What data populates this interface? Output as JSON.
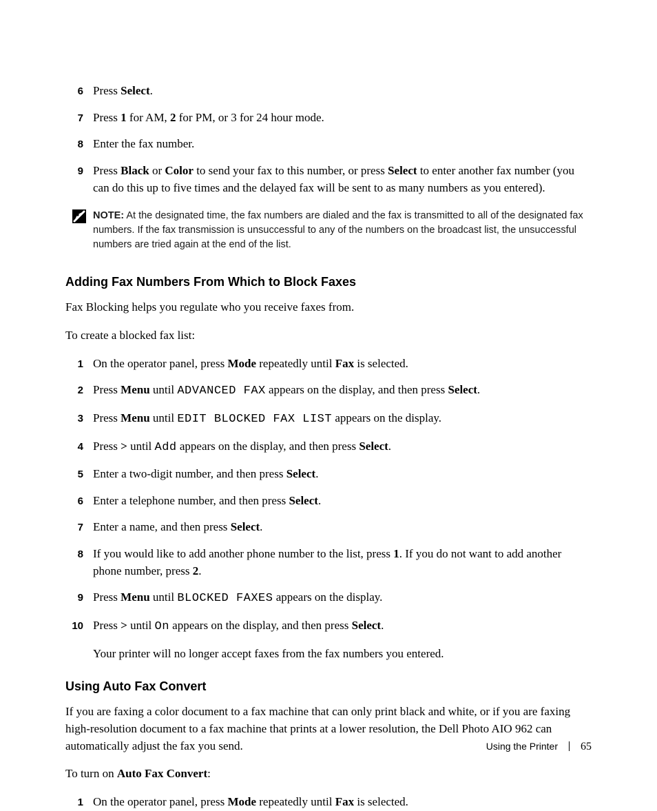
{
  "topList": {
    "items": [
      {
        "num": "6",
        "html": "Press <b>Select</b>."
      },
      {
        "num": "7",
        "html": "Press <b>1</b> for AM, <b>2</b> for PM, or 3 for 24 hour mode."
      },
      {
        "num": "8",
        "html": "Enter the fax number."
      },
      {
        "num": "9",
        "html": "Press <b>Black</b> or <b>Color</b> to send your fax to this number, or press <b>Select</b> to enter another fax number (you can do this up to five times and the delayed fax will be sent to as many numbers as you entered)."
      }
    ]
  },
  "note": {
    "label": "NOTE:",
    "text": "At the designated time, the fax numbers are dialed and the fax is transmitted to all of the designated fax numbers. If the fax transmission is unsuccessful to any of the numbers on the broadcast list, the unsuccessful numbers are tried again at the end of the list."
  },
  "section1": {
    "heading": "Adding Fax Numbers From Which to Block Faxes",
    "intro1": "Fax Blocking helps you regulate who you receive faxes from.",
    "intro2": "To create a blocked fax list:",
    "items": [
      {
        "num": "1",
        "html": "On the operator panel, press <b>Mode</b> repeatedly until <b>Fax</b> is selected."
      },
      {
        "num": "2",
        "html": "Press <b>Menu</b> until <span class=\"code\">ADVANCED FAX</span> appears on the display, and then press <b>Select</b>."
      },
      {
        "num": "3",
        "html": "Press <b>Menu</b> until <span class=\"code\">EDIT BLOCKED FAX LIST</span> appears on the display."
      },
      {
        "num": "4",
        "html": "Press <b>&gt;</b> until <span class=\"code\">Add</span> appears on the display, and then press <b>Select</b>."
      },
      {
        "num": "5",
        "html": "Enter a two-digit number, and then press <b>Select</b>."
      },
      {
        "num": "6",
        "html": "Enter a telephone number, and then press <b>Select</b>."
      },
      {
        "num": "7",
        "html": "Enter a name, and then press <b>Select</b>."
      },
      {
        "num": "8",
        "html": "If you would like to add another phone number to the list, press <b>1</b>. If you do not want to add another phone number, press <b>2</b>."
      },
      {
        "num": "9",
        "html": "Press <b>Menu</b> until <span class=\"code\">BLOCKED FAXES</span> appears on the display."
      },
      {
        "num": "10",
        "html": "Press <b>&gt;</b> until <span class=\"code\">On</span> appears on the display, and then press <b>Select</b>."
      }
    ],
    "after": "Your printer will no longer accept faxes from the fax numbers you entered."
  },
  "section2": {
    "heading": "Using Auto Fax Convert",
    "intro1": "If you are faxing a color document to a fax machine that can only print black and white, or if you are faxing high-resolution document to a fax machine that prints at a lower resolution, the Dell Photo AIO 962 can automatically adjust the fax you send.",
    "intro2_pre": "To turn on ",
    "intro2_bold": "Auto Fax Convert",
    "intro2_post": ":",
    "items": [
      {
        "num": "1",
        "html": "On the operator panel, press <b>Mode</b> repeatedly until <b>Fax</b> is selected."
      }
    ]
  },
  "footer": {
    "section": "Using the Printer",
    "page": "65"
  },
  "colors": {
    "text": "#000000",
    "background": "#ffffff",
    "note_icon_bg": "#000000",
    "note_icon_fg": "#ffffff"
  }
}
